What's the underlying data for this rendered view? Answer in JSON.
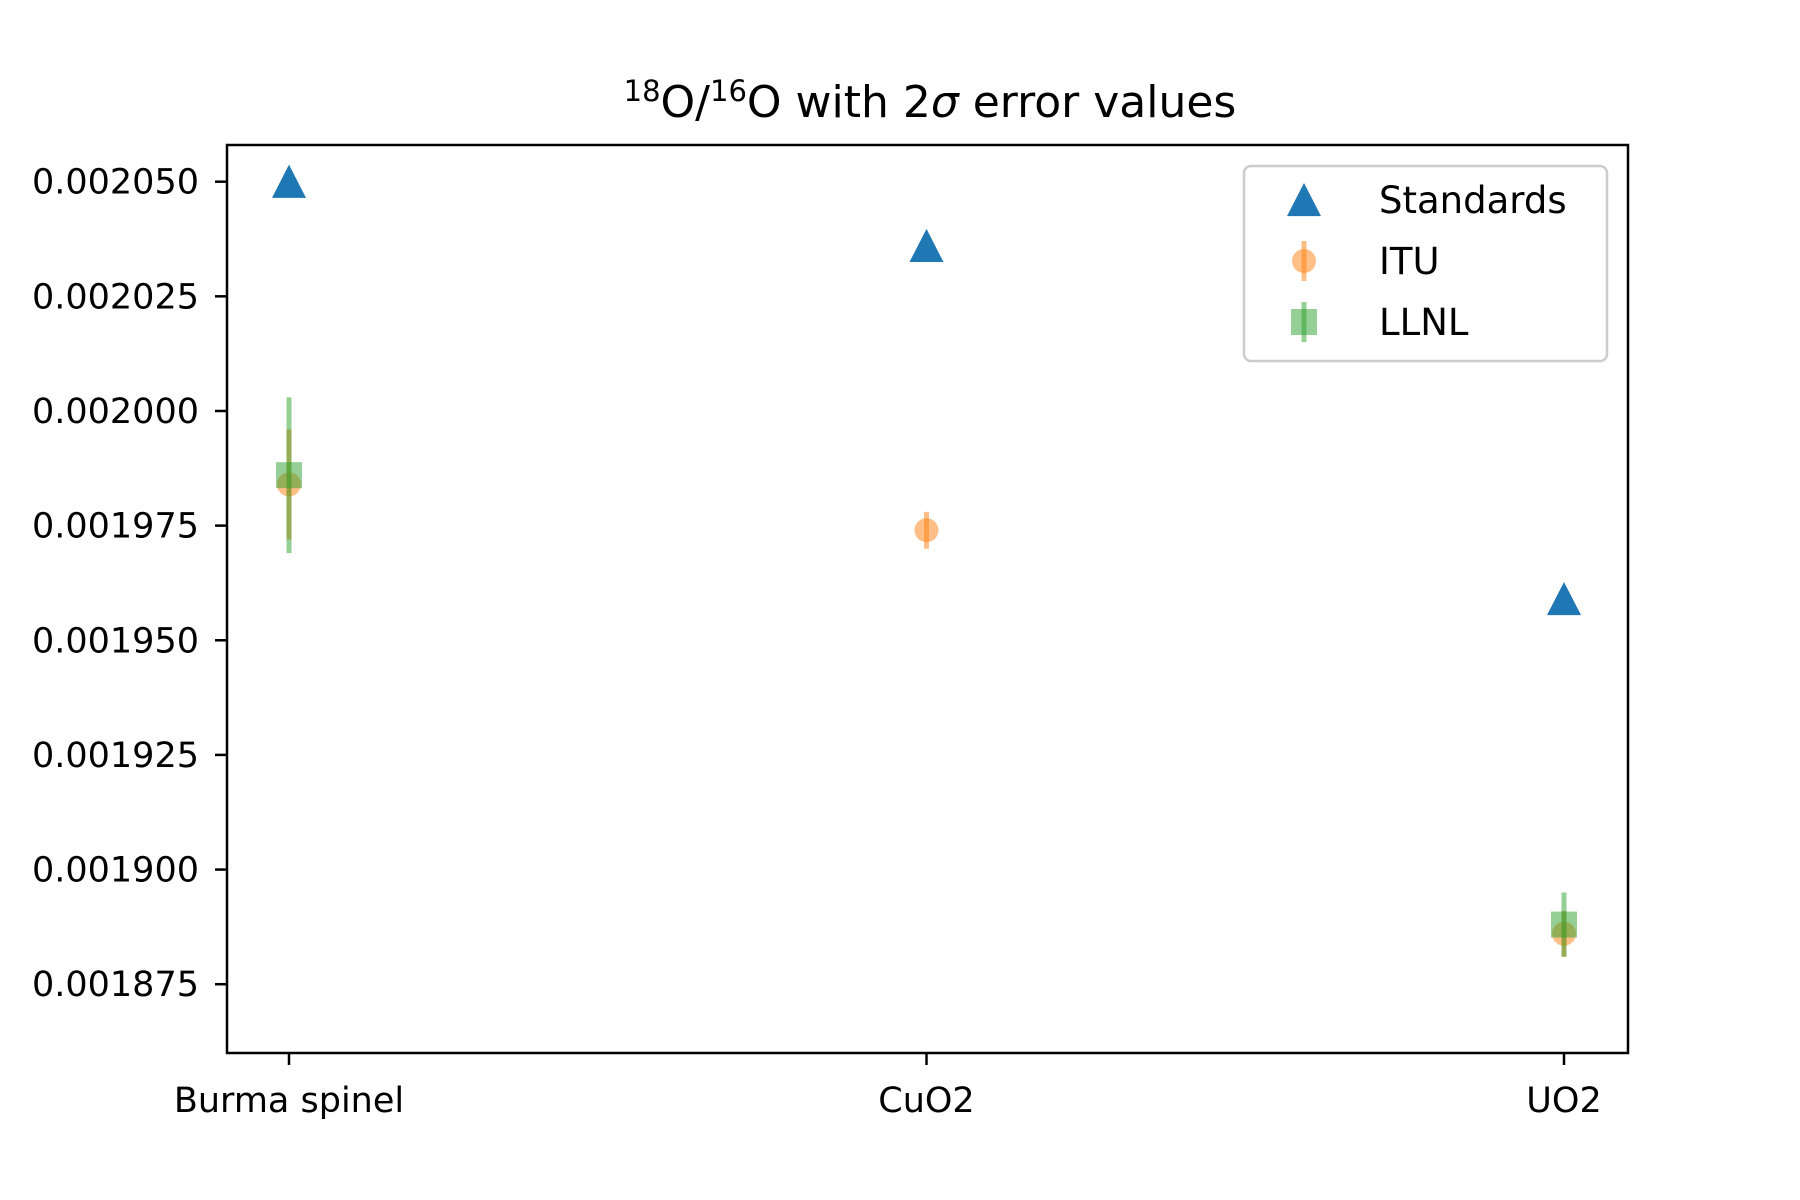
{
  "chart_data": {
    "type": "scatter",
    "title": {
      "prefix_sup": "18",
      "part1": "O/",
      "mid_sup": "16",
      "part2": "O with 2",
      "sigma": "σ",
      "part3": " error values"
    },
    "xlabel": "",
    "ylabel": "",
    "categories": [
      "Burma spinel",
      "CuO2",
      "UO2"
    ],
    "ylim": [
      0.00186,
      0.002058
    ],
    "yticks": [
      0.001875,
      0.0019,
      0.001925,
      0.00195,
      0.001975,
      0.002,
      0.002025,
      0.00205
    ],
    "ytick_labels": [
      "0.001875",
      "0.001900",
      "0.001925",
      "0.001950",
      "0.001975",
      "0.002000",
      "0.002025",
      "0.002050"
    ],
    "legend_position": "top-right",
    "grid": false,
    "series": [
      {
        "name": "Standards",
        "marker": "triangle",
        "color": "#1f77b4",
        "values": [
          0.00205,
          0.002036,
          0.001959
        ],
        "errors": [
          null,
          null,
          null
        ]
      },
      {
        "name": "ITU",
        "marker": "circle",
        "color": "#ff7f0e",
        "values": [
          0.001984,
          0.001974,
          0.001886
        ],
        "errors": [
          1.2e-05,
          4e-06,
          5e-06
        ]
      },
      {
        "name": "LLNL",
        "marker": "square",
        "color": "#2ca02c",
        "values": [
          0.001986,
          null,
          0.001888
        ],
        "errors": [
          1.7e-05,
          null,
          7e-06
        ]
      }
    ]
  }
}
